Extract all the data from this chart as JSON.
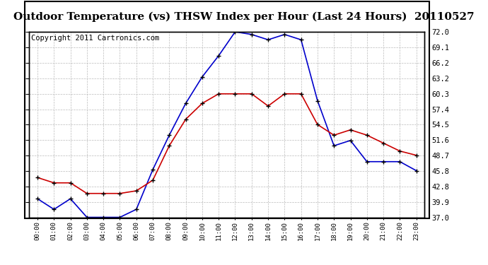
{
  "title": "Outdoor Temperature (vs) THSW Index per Hour (Last 24 Hours)  20110527",
  "copyright": "Copyright 2011 Cartronics.com",
  "hours": [
    "00:00",
    "01:00",
    "02:00",
    "03:00",
    "04:00",
    "05:00",
    "06:00",
    "07:00",
    "08:00",
    "09:00",
    "10:00",
    "11:00",
    "12:00",
    "13:00",
    "14:00",
    "15:00",
    "16:00",
    "17:00",
    "18:00",
    "19:00",
    "20:00",
    "21:00",
    "22:00",
    "23:00"
  ],
  "thsw": [
    40.5,
    38.5,
    40.5,
    37.0,
    37.0,
    37.0,
    38.5,
    46.0,
    52.5,
    58.5,
    63.5,
    67.5,
    72.0,
    71.5,
    70.5,
    71.5,
    70.5,
    59.0,
    50.5,
    51.5,
    47.5,
    47.5,
    47.5,
    45.8
  ],
  "temp": [
    44.5,
    43.5,
    43.5,
    41.5,
    41.5,
    41.5,
    42.0,
    44.0,
    50.5,
    55.5,
    58.5,
    60.3,
    60.3,
    60.3,
    58.0,
    60.3,
    60.3,
    54.5,
    52.5,
    53.5,
    52.5,
    51.0,
    49.5,
    48.7
  ],
  "ylim": [
    37.0,
    72.0
  ],
  "yticks": [
    37.0,
    39.9,
    42.8,
    45.8,
    48.7,
    51.6,
    54.5,
    57.4,
    60.3,
    63.2,
    66.2,
    69.1,
    72.0
  ],
  "thsw_color": "#0000cc",
  "temp_color": "#cc0000",
  "bg_color": "#ffffff",
  "grid_color": "#bbbbbb",
  "title_fontsize": 11,
  "copyright_fontsize": 7.5
}
